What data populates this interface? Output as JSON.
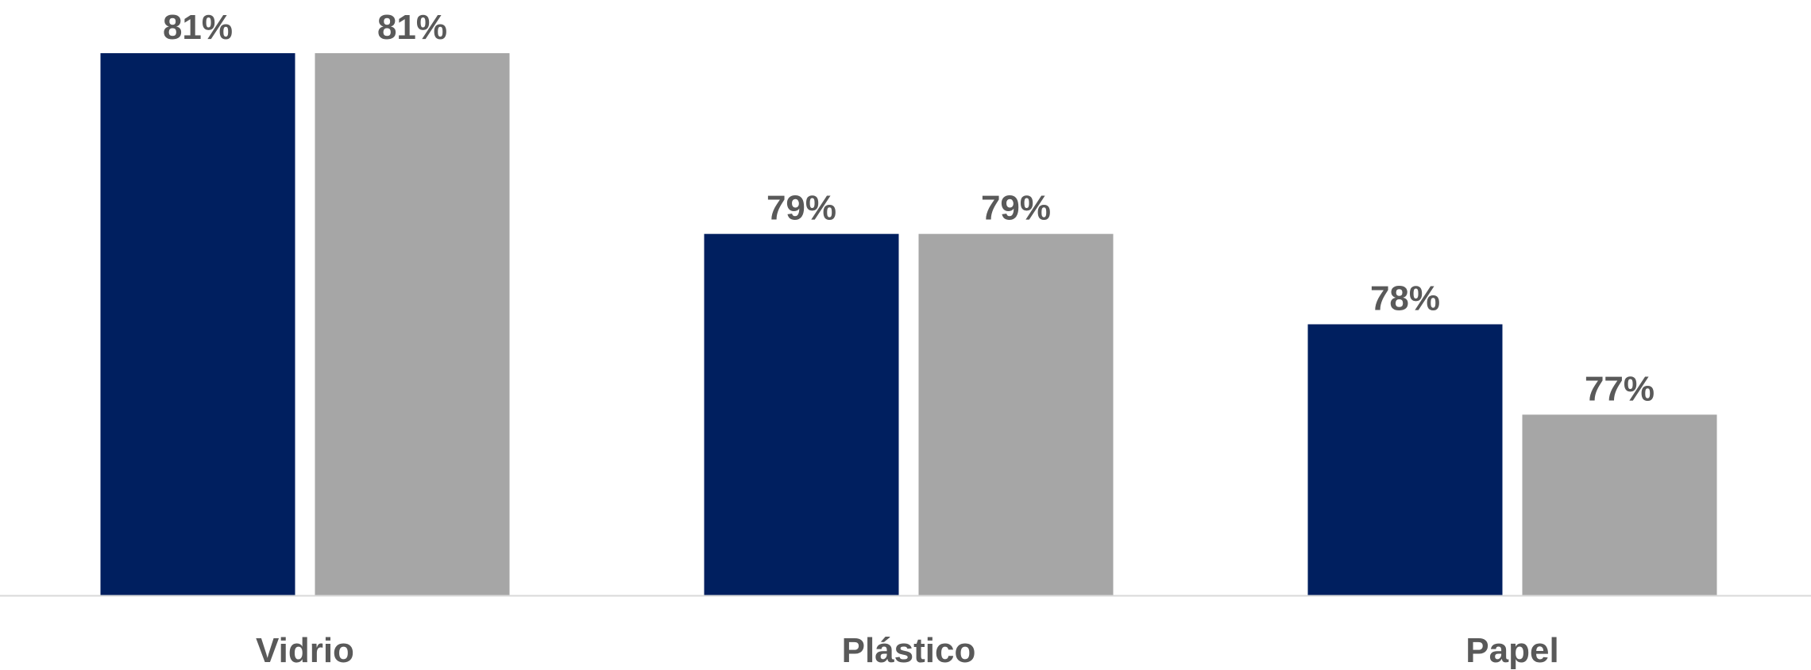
{
  "chart_data": {
    "type": "bar",
    "categories": [
      "Vidrio",
      "Plástico",
      "Papel"
    ],
    "series": [
      {
        "values": [
          81,
          79,
          78
        ],
        "labels": [
          "81%",
          "79%",
          "78%"
        ],
        "color": "#001F5F"
      },
      {
        "values": [
          81,
          79,
          77
        ],
        "labels": [
          "81%",
          "79%",
          "77%"
        ],
        "color": "#A6A6A6"
      }
    ],
    "title": "",
    "xlabel": "",
    "ylabel": "",
    "ylim": [
      75,
      81
    ],
    "grid": false,
    "legend": "none",
    "axis_color": "#D9D9D9",
    "label_color": "#595959"
  }
}
